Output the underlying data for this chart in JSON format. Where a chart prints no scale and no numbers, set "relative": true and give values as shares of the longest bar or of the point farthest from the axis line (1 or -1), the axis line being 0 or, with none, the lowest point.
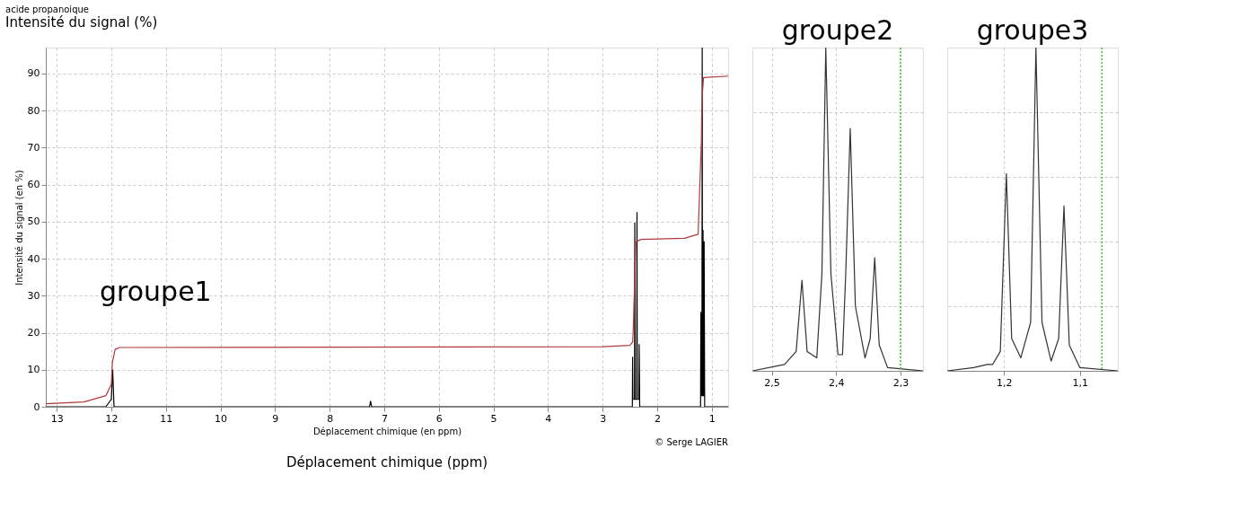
{
  "chart_data": [
    {
      "type": "line",
      "title": "acide propanoique",
      "xlabel": "Déplacement chimique (en ppm)",
      "ylabel": "Intensité du signal (en %)",
      "annotations": [
        "Intensité du signal (%)",
        "Déplacement chimique (ppm)",
        "© Serge LAGIER",
        "groupe1"
      ],
      "xlim": [
        13.2,
        0.7
      ],
      "xticks": [
        13,
        12,
        11,
        10,
        9,
        8,
        7,
        6,
        5,
        4,
        3,
        2,
        1
      ],
      "ylim": [
        0,
        97
      ],
      "yticks": [
        0,
        10,
        20,
        30,
        40,
        50,
        60,
        70,
        80,
        90
      ],
      "grid": true,
      "line_style": "solid",
      "series": [
        {
          "color": "#000000",
          "x": [
            13.2,
            12.1,
            12.0,
            11.975,
            11.95,
            11.8,
            7.27,
            7.25,
            7.23,
            2.5,
            2.455,
            2.45,
            2.445,
            2.415,
            2.41,
            2.405,
            2.375,
            2.37,
            2.365,
            2.335,
            2.33,
            2.32,
            1.25,
            1.205,
            1.2,
            1.19,
            1.18,
            1.175,
            1.17,
            1.165,
            1.16,
            1.155,
            1.145,
            1.14,
            1.13,
            0.7
          ],
          "values": [
            0,
            0,
            2,
            10,
            0,
            0,
            0,
            1.5,
            0,
            0,
            0,
            13.4,
            2,
            2,
            49.6,
            2,
            2,
            52.5,
            2,
            2,
            16.8,
            0,
            0,
            0,
            25.5,
            3,
            3,
            97,
            3,
            3,
            47.6,
            3,
            3,
            44.6,
            0,
            0
          ]
        },
        {
          "color": "#b03a3a",
          "x": [
            13.2,
            12.5,
            12.1,
            12.0,
            11.98,
            11.93,
            11.85,
            3.0,
            2.5,
            2.45,
            2.44,
            2.42,
            2.4,
            2.39,
            2.3,
            1.5,
            1.25,
            1.22,
            1.19,
            1.185,
            1.17,
            1.15,
            0.7
          ],
          "values": [
            0.8,
            1.3,
            3,
            6,
            12,
            15.5,
            16,
            16.2,
            16.6,
            17.5,
            20.3,
            30.6,
            40,
            44.5,
            45.2,
            45.5,
            46.6,
            59.4,
            72,
            78.6,
            85,
            88.9,
            89.3
          ]
        }
      ]
    },
    {
      "type": "line",
      "title": "groupe2",
      "relative": true,
      "grid": true,
      "line_style": "solid",
      "xlim": [
        2.53,
        2.265
      ],
      "xticks": [
        {
          "value": 2.5,
          "label": "2,5"
        },
        {
          "value": 2.4,
          "label": "2,4"
        },
        {
          "value": 2.3,
          "label": "2,3"
        }
      ],
      "ref_lines": [
        {
          "axis": "x",
          "value": 2.3,
          "color": "#33cc33",
          "line_style": "dotted"
        }
      ],
      "series": [
        {
          "color": "#333333",
          "x": [
            2.53,
            2.48,
            2.462,
            2.453,
            2.445,
            2.43,
            2.422,
            2.416,
            2.408,
            2.397,
            2.39,
            2.385,
            2.378,
            2.37,
            2.355,
            2.347,
            2.34,
            2.333,
            2.32,
            2.265
          ],
          "values": [
            0,
            0.02,
            0.06,
            0.28,
            0.06,
            0.04,
            0.3,
            1,
            0.3,
            0.05,
            0.05,
            0.3,
            0.75,
            0.2,
            0.04,
            0.1,
            0.35,
            0.08,
            0.01,
            0
          ]
        }
      ]
    },
    {
      "type": "line",
      "title": "groupe3",
      "relative": true,
      "grid": true,
      "line_style": "solid",
      "xlim": [
        1.275,
        1.05
      ],
      "xticks": [
        {
          "value": 1.2,
          "label": "1,2"
        },
        {
          "value": 1.1,
          "label": "1,1"
        }
      ],
      "ref_lines": [
        {
          "axis": "x",
          "value": 1.071,
          "color": "#33cc33",
          "line_style": "dotted"
        }
      ],
      "series": [
        {
          "color": "#333333",
          "x": [
            1.275,
            1.24,
            1.222,
            1.215,
            1.205,
            1.197,
            1.19,
            1.178,
            1.165,
            1.158,
            1.15,
            1.138,
            1.128,
            1.121,
            1.114,
            1.1,
            1.05
          ],
          "values": [
            0,
            0.01,
            0.02,
            0.02,
            0.06,
            0.61,
            0.1,
            0.04,
            0.15,
            1,
            0.15,
            0.03,
            0.1,
            0.51,
            0.08,
            0.01,
            0
          ]
        }
      ]
    }
  ]
}
